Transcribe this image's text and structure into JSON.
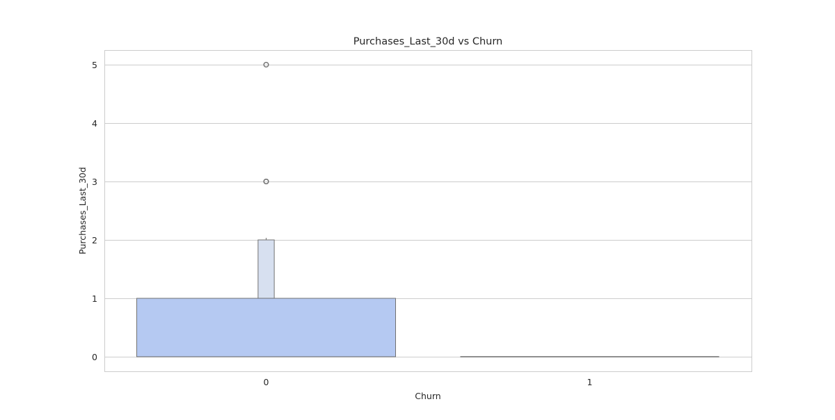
{
  "chart_data": {
    "type": "boxen",
    "title": "Purchases_Last_30d vs Churn",
    "xlabel": "Churn",
    "ylabel": "Purchases_Last_30d",
    "categories": [
      "0",
      "1"
    ],
    "ylim": [
      -0.25,
      5.25
    ],
    "yticks": [
      0,
      1,
      2,
      3,
      4,
      5
    ],
    "grid": true,
    "series": [
      {
        "category": "0",
        "median": 0,
        "boxes": [
          {
            "lower": 0,
            "upper": 1,
            "color": "#b5c9f2"
          },
          {
            "lower": 1,
            "upper": 2,
            "color": "#d7e0f0"
          }
        ],
        "outliers": [
          3,
          3,
          5
        ]
      },
      {
        "category": "1",
        "median": 0,
        "boxes": [
          {
            "lower": 0,
            "upper": 0,
            "color": "#b5c9f2"
          }
        ],
        "outliers": []
      }
    ],
    "colors": {
      "edge": "#707070",
      "grid": "#cccccc",
      "outlier": "#707070"
    }
  }
}
